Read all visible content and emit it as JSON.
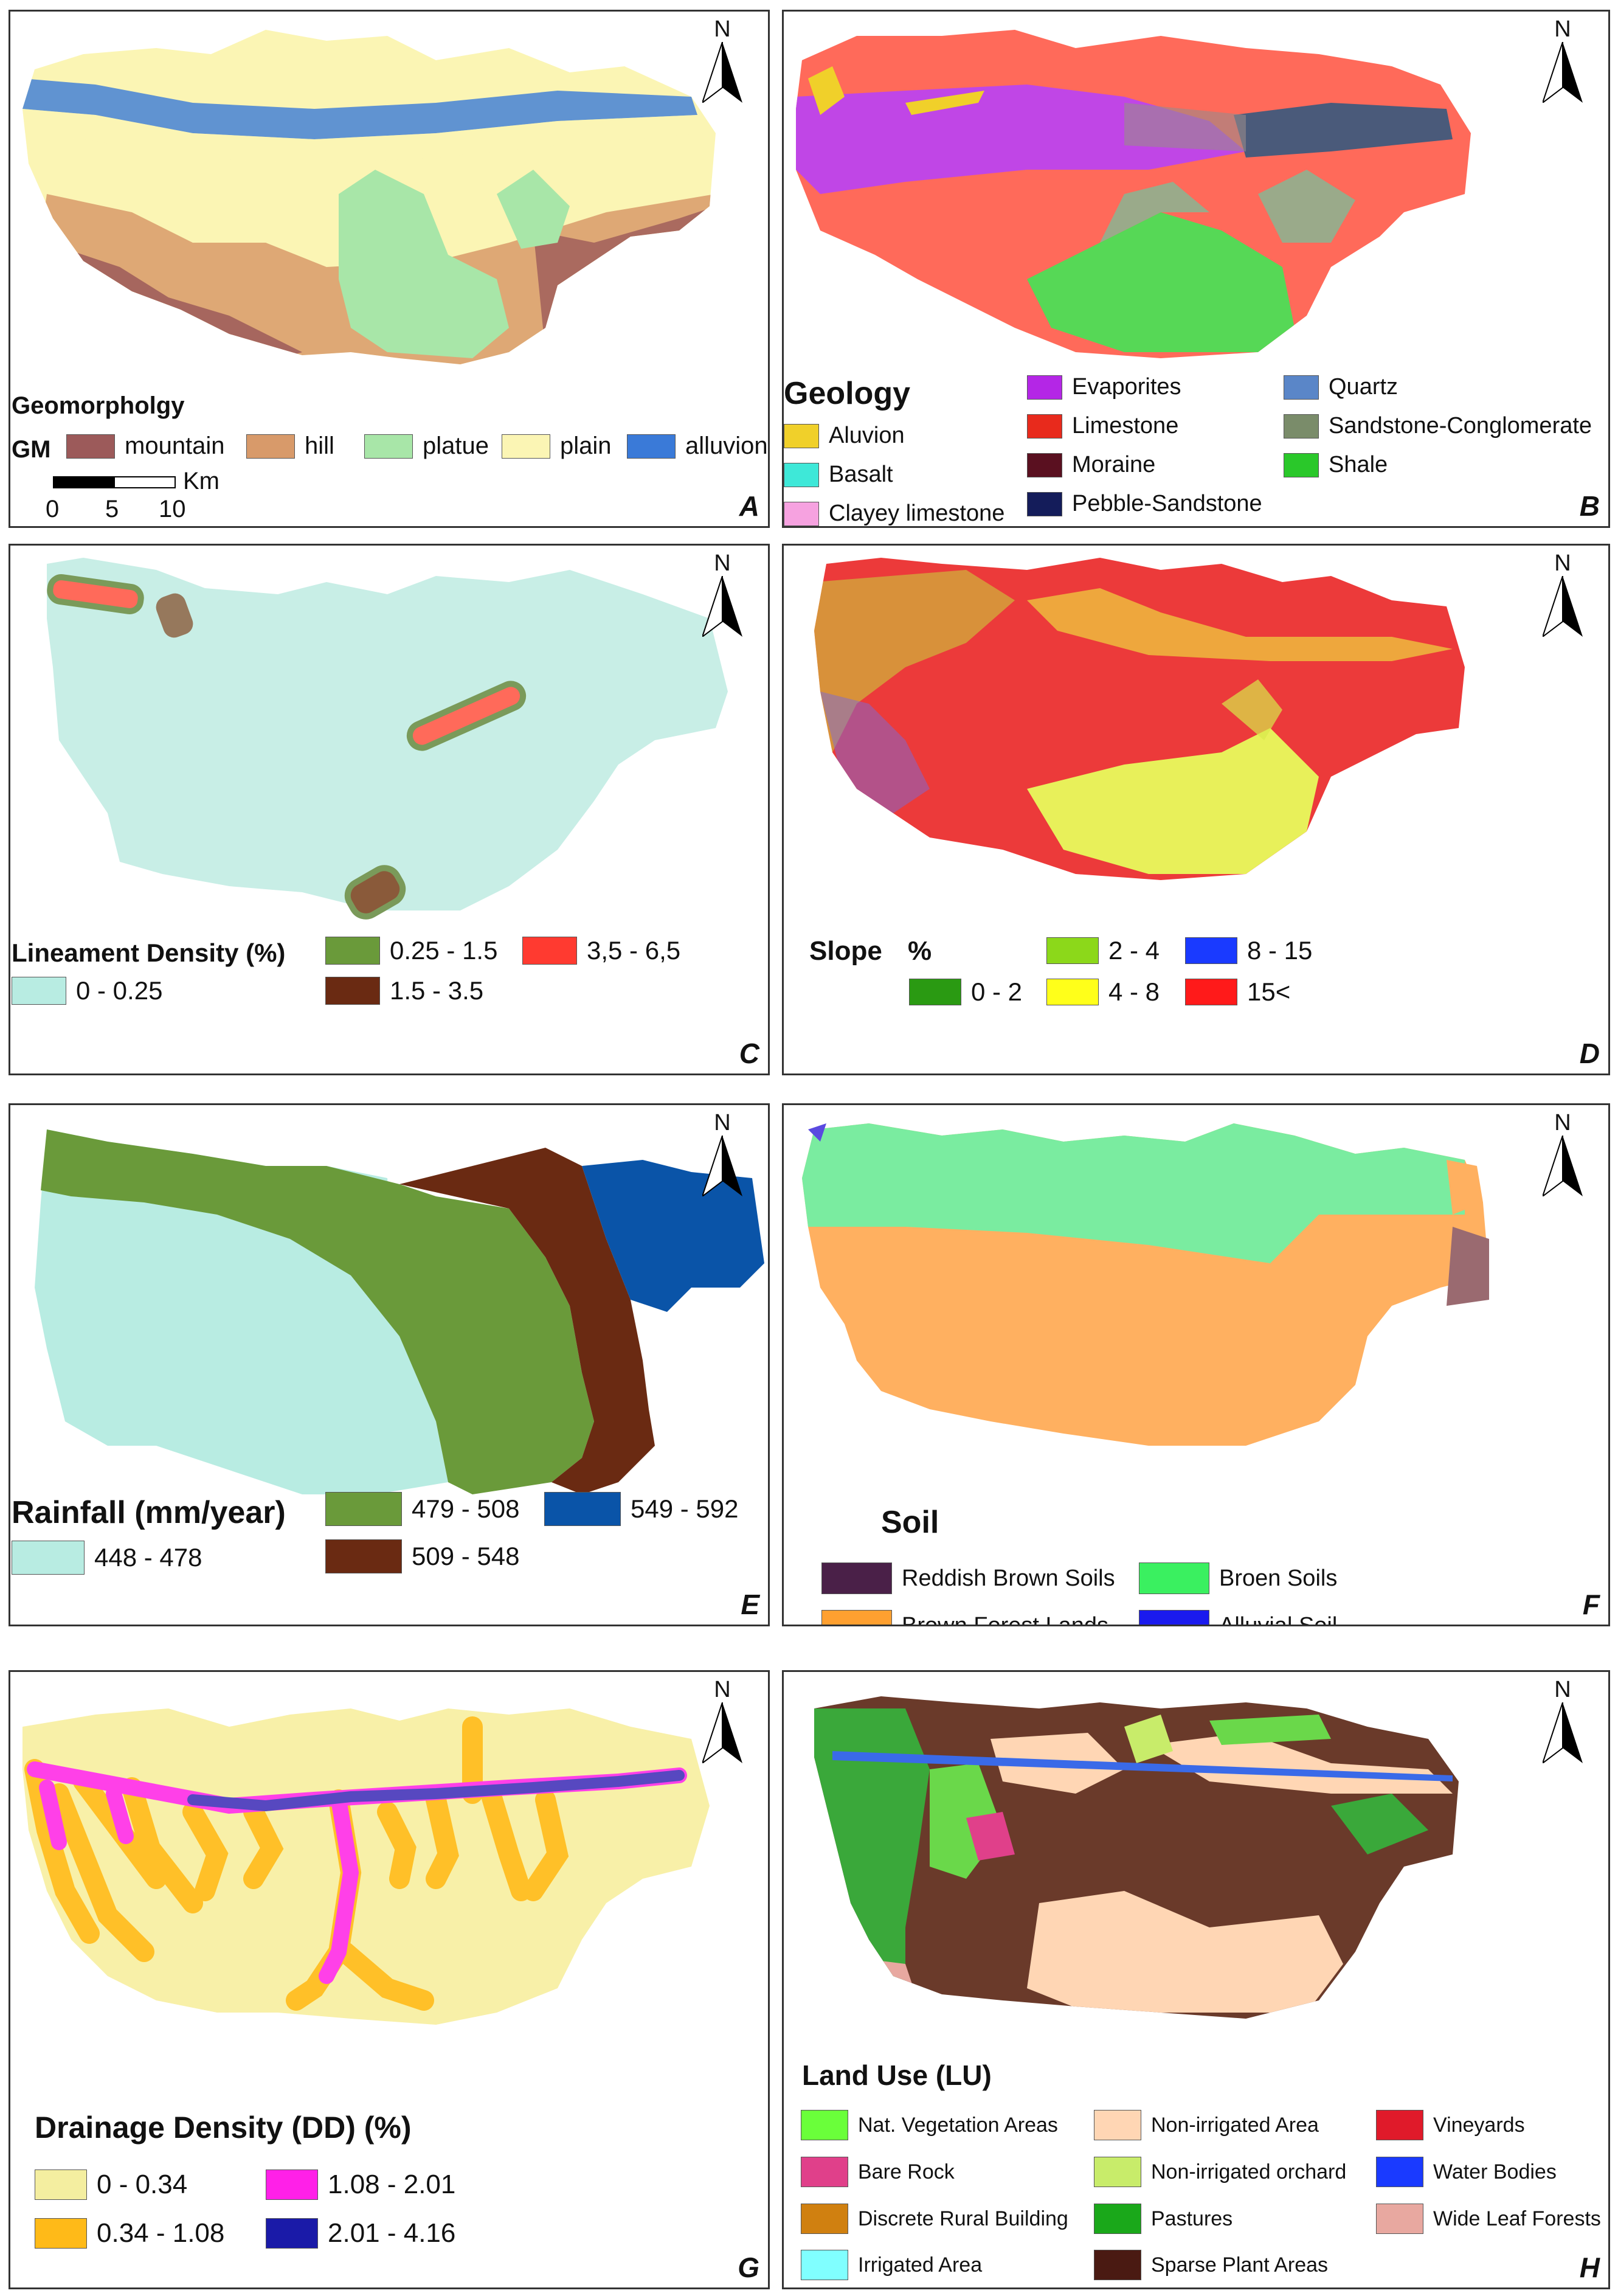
{
  "north_label": "N",
  "panels": {
    "A": {
      "letter": "A",
      "legend_title": "Geomorpholgy",
      "legend_prefix": "GM",
      "items": [
        {
          "label": "mountain",
          "color": "#9c5a5a"
        },
        {
          "label": "hill",
          "color": "#d89a6a"
        },
        {
          "label": "platue",
          "color": "#a8e6a8"
        },
        {
          "label": "plain",
          "color": "#fbf5b4"
        },
        {
          "label": "alluvion",
          "color": "#3a7ad8"
        }
      ],
      "scale": {
        "unit": "Km",
        "ticks": [
          "0",
          "5",
          "10"
        ]
      }
    },
    "B": {
      "letter": "B",
      "legend_title": "Geology",
      "items": [
        {
          "label": "Aluvion",
          "color": "#f0d02a"
        },
        {
          "label": "Basalt",
          "color": "#3ee8d8"
        },
        {
          "label": "Clayey limestone",
          "color": "#f6a2e0"
        },
        {
          "label": "Evaporites",
          "color": "#b426e6"
        },
        {
          "label": "Limestone",
          "color": "#e82a1c"
        },
        {
          "label": "Moraine",
          "color": "#5a1020"
        },
        {
          "label": "Pebble-Sandstone",
          "color": "#141c5a"
        },
        {
          "label": "Quartz",
          "color": "#5a86c8"
        },
        {
          "label": "Sandstone-Conglomerate",
          "color": "#7a8c6a"
        },
        {
          "label": "Shale",
          "color": "#2ac82a"
        }
      ]
    },
    "C": {
      "letter": "C",
      "legend_title": "Lineament Density (%)",
      "items": [
        {
          "label": "0 - 0.25",
          "color": "#b8ece2"
        },
        {
          "label": "0.25 - 1.5",
          "color": "#6a9a3a"
        },
        {
          "label": "1.5 - 3.5",
          "color": "#6a2a12"
        },
        {
          "label": "3,5 - 6,5",
          "color": "#ff3a30"
        }
      ]
    },
    "D": {
      "letter": "D",
      "legend_title": "Slope",
      "legend_unit": "%",
      "items": [
        {
          "label": "0 - 2",
          "color": "#2a9a12"
        },
        {
          "label": "2 - 4",
          "color": "#8cd81a"
        },
        {
          "label": "4 - 8",
          "color": "#ffff1a"
        },
        {
          "label": "8 - 15",
          "color": "#1a3aff"
        },
        {
          "label": "15<",
          "color": "#ff1a1a"
        }
      ]
    },
    "E": {
      "letter": "E",
      "legend_title": "Rainfall (mm/year)",
      "items": [
        {
          "label": "448 - 478",
          "color": "#b8ece2"
        },
        {
          "label": "479 - 508",
          "color": "#6a9a3a"
        },
        {
          "label": "509 - 548",
          "color": "#6a2a12"
        },
        {
          "label": "549 - 592",
          "color": "#0a54a8"
        }
      ]
    },
    "F": {
      "letter": "F",
      "legend_title": "Soil",
      "items": [
        {
          "label": "Reddish Brown Soils",
          "color": "#4a2048"
        },
        {
          "label": "Brown Forest Lands",
          "color": "#ffa030"
        },
        {
          "label": "Broen Soils",
          "color": "#3af060"
        },
        {
          "label": "Alluvial Soil",
          "color": "#1a1aee"
        }
      ]
    },
    "G": {
      "letter": "G",
      "legend_title": "Drainage Density (DD) (%)",
      "items": [
        {
          "label": "0 - 0.34",
          "color": "#f4eea0"
        },
        {
          "label": "0.34 - 1.08",
          "color": "#ffba18"
        },
        {
          "label": "1.08 - 2.01",
          "color": "#ff20e8"
        },
        {
          "label": "2.01 - 4.16",
          "color": "#1a1aa8"
        }
      ]
    },
    "H": {
      "letter": "H",
      "legend_title": "Land Use (LU)",
      "items": [
        {
          "label": "Nat. Vegetation Areas",
          "color": "#6aff3a"
        },
        {
          "label": "Bare Rock",
          "color": "#e0408a"
        },
        {
          "label": "Discrete Rural Building",
          "color": "#d08010"
        },
        {
          "label": "Irrigated Area",
          "color": "#80ffff"
        },
        {
          "label": "Non-irrigated Area",
          "color": "#ffd6b4"
        },
        {
          "label": "Non-irrigated orchard",
          "color": "#c8ec6a"
        },
        {
          "label": "Pastures",
          "color": "#1aa81a"
        },
        {
          "label": "Sparse Plant Areas",
          "color": "#4a1a12"
        },
        {
          "label": "Vineyards",
          "color": "#e01a2a"
        },
        {
          "label": "Water Bodies",
          "color": "#1a3aff"
        },
        {
          "label": "Wide Leaf Forests",
          "color": "#e8a8a0"
        }
      ]
    }
  }
}
